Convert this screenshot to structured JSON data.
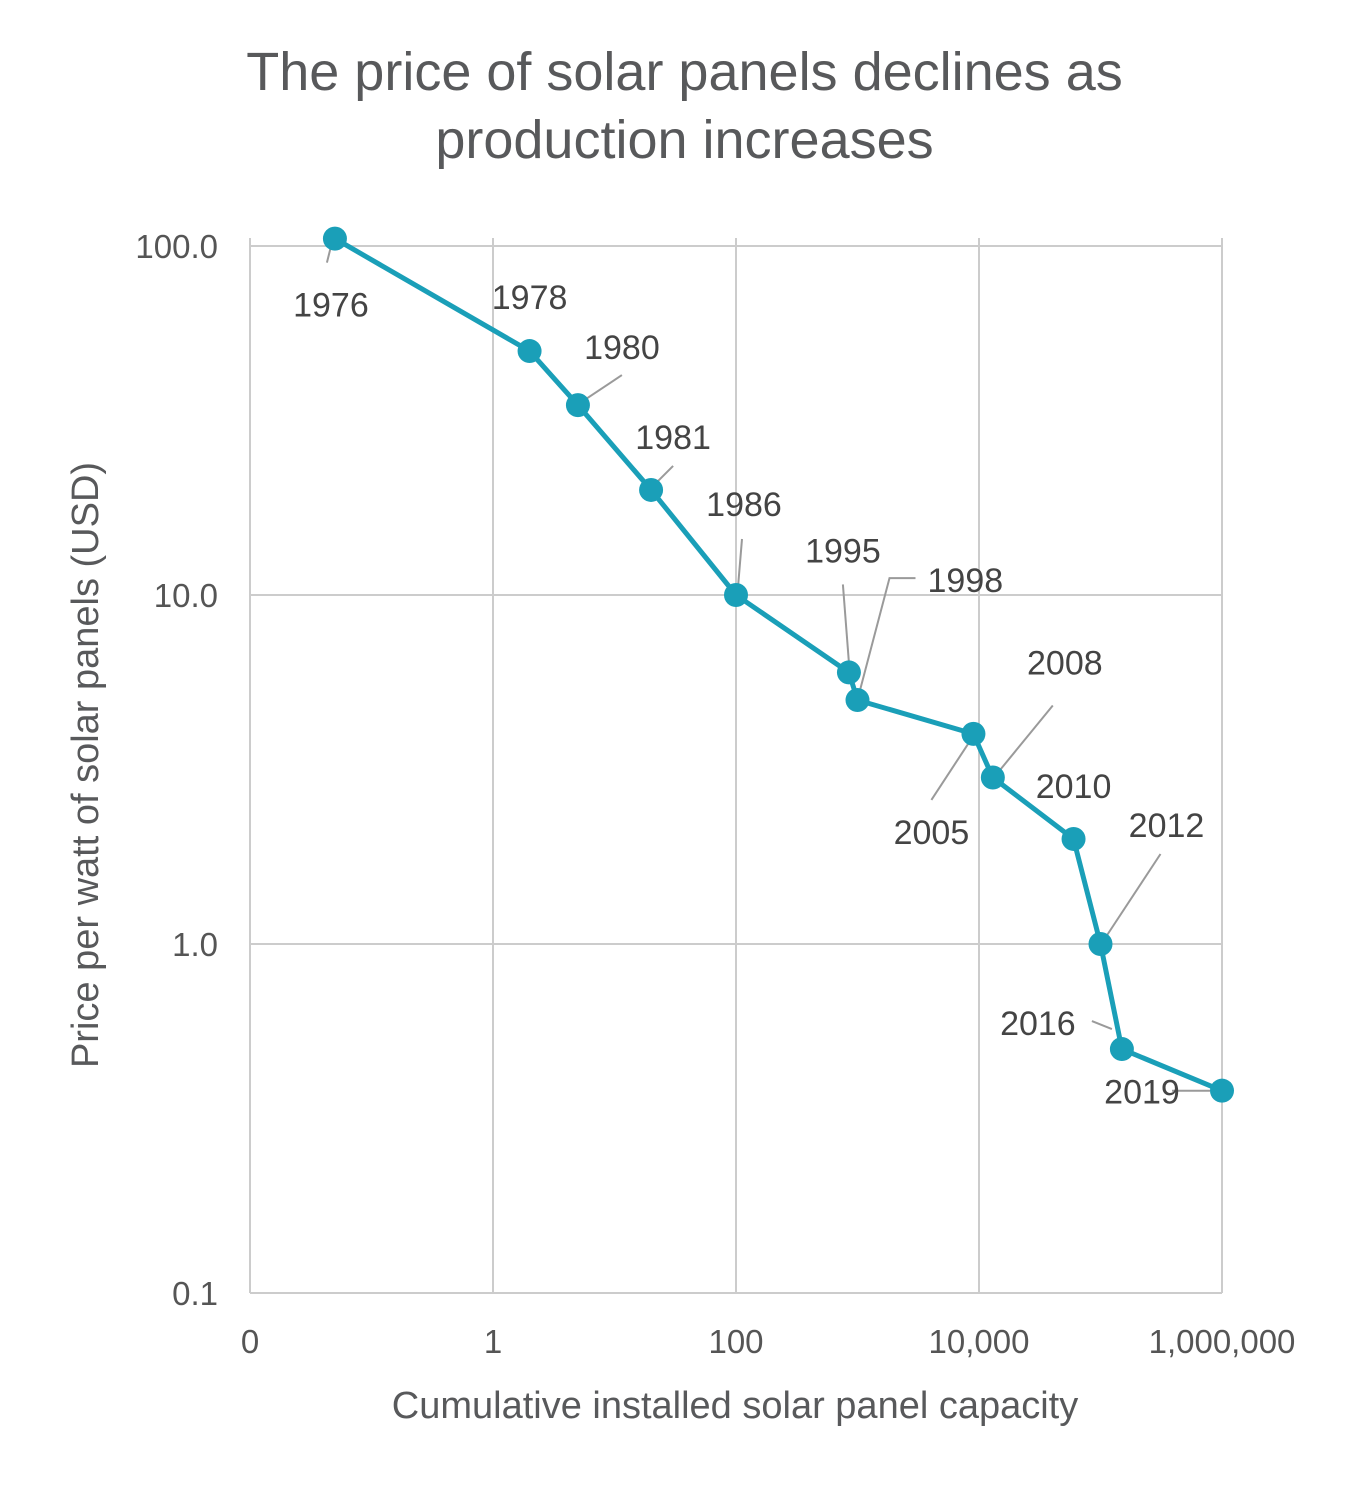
{
  "chart_data": {
    "type": "line",
    "title_lines": [
      "The price of solar panels declines as",
      "production increases"
    ],
    "xlabel": "Cumulative installed solar panel capacity",
    "ylabel": "Price per watt of solar panels (USD)",
    "x_scale": "log",
    "y_scale": "log",
    "x_ticks": [
      {
        "value": 0.01,
        "label": "0"
      },
      {
        "value": 1,
        "label": "1"
      },
      {
        "value": 100,
        "label": "100"
      },
      {
        "value": 10000,
        "label": "10,000"
      },
      {
        "value": 1000000,
        "label": "1,000,000"
      }
    ],
    "y_ticks": [
      {
        "value": 0.1,
        "label": "0.1"
      },
      {
        "value": 1,
        "label": "1.0"
      },
      {
        "value": 10,
        "label": "10.0"
      },
      {
        "value": 100,
        "label": "100.0"
      }
    ],
    "xlim": [
      0.01,
      1000000
    ],
    "ylim": [
      0.1,
      100
    ],
    "grid": true,
    "line_color": "#1a9fb8",
    "grid_color": "#cccccc",
    "points": [
      {
        "year": "1976",
        "x": 0.05,
        "y": 105.0
      },
      {
        "year": "1978",
        "x": 2.0,
        "y": 50.0
      },
      {
        "year": "1980",
        "x": 5.0,
        "y": 35.0
      },
      {
        "year": "1981",
        "x": 20.0,
        "y": 20.0
      },
      {
        "year": "1986",
        "x": 100.0,
        "y": 10.0
      },
      {
        "year": "1995",
        "x": 850.0,
        "y": 6.0
      },
      {
        "year": "1998",
        "x": 1000.0,
        "y": 5.0
      },
      {
        "year": "2005",
        "x": 9000.0,
        "y": 4.0
      },
      {
        "year": "2008",
        "x": 13000.0,
        "y": 3.0
      },
      {
        "year": "2010",
        "x": 60000.0,
        "y": 2.0
      },
      {
        "year": "2012",
        "x": 100000.0,
        "y": 1.0
      },
      {
        "year": "2016",
        "x": 150000.0,
        "y": 0.5
      },
      {
        "year": "2019",
        "x": 1000000.0,
        "y": 0.38
      }
    ]
  }
}
